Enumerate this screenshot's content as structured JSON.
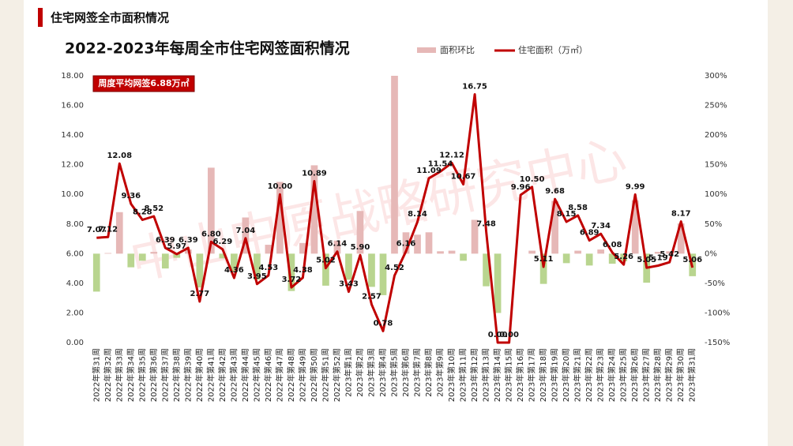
{
  "header": {
    "title": "住宅网签全市面积情况"
  },
  "chart_data": {
    "type": "combo",
    "title": "2022-2023年每周全市住宅网签面积情况",
    "watermark": "中山中原战略研究中心",
    "annotation": "周度平均网签6.88万㎡",
    "categories": [
      "2022年第31周",
      "2022年第32周",
      "2022年第33周",
      "2022年第34周",
      "2022年第35周",
      "2022年第36周",
      "2022年第37周",
      "2022年第38周",
      "2022年第39周",
      "2022年第40周",
      "2022年第41周",
      "2022年第42周",
      "2022年第43周",
      "2022年第44周",
      "2022年第45周",
      "2022年第46周",
      "2022年第47周",
      "2022年第48周",
      "2022年第49周",
      "2022年第50周",
      "2022年第51周",
      "2022年第52周",
      "2023年第1周",
      "2023年第2周",
      "2023年第3周",
      "2023年第4周",
      "2023年第5周",
      "2023年第6周",
      "2023年第7周",
      "2023年第8周",
      "2023年第9周",
      "2023年第10周",
      "2023年第11周",
      "2023年第12周",
      "2023年第13周",
      "2023年第14周",
      "2023年第15周",
      "2023年第16周",
      "2023年第17周",
      "2023年第18周",
      "2023年第19周",
      "2023年第20周",
      "2023年第21周",
      "2023年第22周",
      "2023年第23周",
      "2023年第24周",
      "2023年第25周",
      "2023年第26周",
      "2023年第27周",
      "2023年第28周",
      "2023年第29周",
      "2023年第30周",
      "2023年第31周"
    ],
    "series": [
      {
        "name": "面积环比",
        "axis": "y2",
        "color": "#e6b8b7",
        "negative_color": "#b9d58f",
        "values": [
          -64,
          1,
          70,
          -23,
          -12,
          3,
          -25,
          -7,
          7,
          -57,
          145,
          -8,
          -31,
          61,
          -44,
          15,
          121,
          -63,
          18,
          149,
          -54,
          22,
          -44,
          72,
          -56,
          -70,
          479,
          36,
          32,
          36,
          4,
          5,
          -12,
          57,
          -55,
          -100,
          null,
          null,
          5,
          -51,
          89,
          -16,
          5,
          -20,
          7,
          -17,
          -13,
          90,
          -49,
          3,
          4,
          51,
          -38
        ]
      },
      {
        "name": "住宅面积（万㎡）",
        "color": "#c00000",
        "values": [
          7.07,
          7.12,
          12.08,
          9.36,
          8.28,
          8.52,
          6.39,
          5.97,
          6.39,
          2.77,
          6.8,
          6.29,
          4.36,
          7.04,
          3.95,
          4.53,
          10,
          3.72,
          4.38,
          10.89,
          5.02,
          6.14,
          3.43,
          5.9,
          2.57,
          0.78,
          4.52,
          6.16,
          8.14,
          11.09,
          11.54,
          12.12,
          10.67,
          16.75,
          7.48,
          0,
          0,
          9.96,
          10.5,
          5.11,
          9.68,
          8.15,
          8.58,
          6.89,
          7.34,
          6.08,
          5.26,
          9.99,
          5.05,
          5.19,
          5.42,
          8.17,
          5.06
        ],
        "value_labels": [
          "7.07",
          "7.12",
          "12.08",
          "9.36",
          "8.28",
          "8.52",
          "6.39",
          "5.97",
          "6.39",
          "2.77",
          "6.80",
          "6.29",
          "4.36",
          "7.04",
          "3.95",
          "4.53",
          "10.00",
          "3.72",
          "4.38",
          "10.89",
          "5.02",
          "6.14",
          "3.43",
          "5.90",
          "2.57",
          "0.78",
          "4.52",
          "6.16",
          "8.14",
          "11.09",
          "11.54",
          "12.12",
          "10.67",
          "16.75",
          "7.48",
          "0.00",
          "0.00",
          "9.96",
          "10.50",
          "5.11",
          "9.68",
          "8.15",
          "8.58",
          "6.89",
          "7.34",
          "6.08",
          "5.26",
          "9.99",
          "5.05",
          "5.19",
          "5.42",
          "8.17",
          "5.06"
        ]
      }
    ],
    "ylim": [
      0,
      18
    ],
    "yticks": [
      {
        "value": 0,
        "label": "0.00"
      },
      {
        "value": 2,
        "label": "2.00"
      },
      {
        "value": 4,
        "label": "4.00"
      },
      {
        "value": 6,
        "label": "6.00"
      },
      {
        "value": 8,
        "label": "8.00"
      },
      {
        "value": 10,
        "label": "10.00"
      },
      {
        "value": 12,
        "label": "12.00"
      },
      {
        "value": 14,
        "label": "14.00"
      },
      {
        "value": 16,
        "label": "16.00"
      },
      {
        "value": 18,
        "label": "18.00"
      }
    ],
    "y2lim": [
      -150,
      300
    ],
    "y2ticks": [
      {
        "value": -150,
        "label": "-150%"
      },
      {
        "value": -100,
        "label": "-100%"
      },
      {
        "value": -50,
        "label": "-50%"
      },
      {
        "value": 0,
        "label": "0%"
      },
      {
        "value": 50,
        "label": "50%"
      },
      {
        "value": 100,
        "label": "100%"
      },
      {
        "value": 150,
        "label": "150%"
      },
      {
        "value": 200,
        "label": "200%"
      },
      {
        "value": 250,
        "label": "250%"
      },
      {
        "value": 300,
        "label": "300%"
      }
    ]
  }
}
